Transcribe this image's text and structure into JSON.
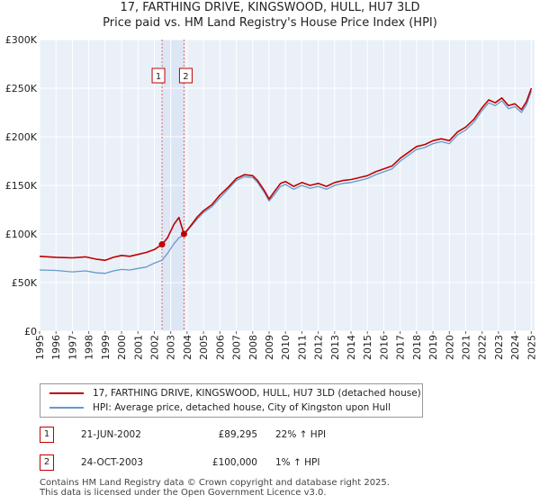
{
  "title_line1": "17, FARTHING DRIVE, KINGSWOOD, HULL, HU7 3LD",
  "title_line2": "Price paid vs. HM Land Registry's House Price Index (HPI)",
  "chart_data": {
    "type": "line",
    "xlabel": "",
    "ylabel": "",
    "xlim": [
      1995,
      2025.2
    ],
    "ylim": [
      0,
      300000
    ],
    "x_ticks": [
      1995,
      1996,
      1997,
      1998,
      1999,
      2000,
      2001,
      2002,
      2003,
      2004,
      2005,
      2006,
      2007,
      2008,
      2009,
      2010,
      2011,
      2012,
      2013,
      2014,
      2015,
      2016,
      2017,
      2018,
      2019,
      2020,
      2021,
      2022,
      2023,
      2024,
      2025
    ],
    "y_ticks": [
      {
        "value": 0,
        "label": "£0"
      },
      {
        "value": 50000,
        "label": "£50K"
      },
      {
        "value": 100000,
        "label": "£100K"
      },
      {
        "value": 150000,
        "label": "£150K"
      },
      {
        "value": 200000,
        "label": "£200K"
      },
      {
        "value": 250000,
        "label": "£250K"
      },
      {
        "value": 300000,
        "label": "£300K"
      }
    ],
    "grid": true,
    "series": [
      {
        "name": "17, FARTHING DRIVE, KINGSWOOD, HULL, HU7 3LD (detached house)",
        "color": "#c00000",
        "x": [
          1995,
          1996,
          1997,
          1997.8,
          1998.5,
          1999,
          1999.5,
          2000,
          2000.5,
          2001,
          2001.5,
          2002,
          2002.47,
          2002.8,
          2003.2,
          2003.5,
          2003.81,
          2004.2,
          2004.6,
          2005,
          2005.5,
          2006,
          2006.5,
          2007,
          2007.5,
          2008,
          2008.3,
          2008.7,
          2009,
          2009.3,
          2009.7,
          2010,
          2010.5,
          2011,
          2011.5,
          2012,
          2012.5,
          2013,
          2013.5,
          2014,
          2014.5,
          2015,
          2015.5,
          2016,
          2016.5,
          2017,
          2017.5,
          2018,
          2018.5,
          2019,
          2019.5,
          2020,
          2020.5,
          2021,
          2021.5,
          2022,
          2022.4,
          2022.8,
          2023.2,
          2023.6,
          2024,
          2024.4,
          2024.7,
          2025
        ],
        "values": [
          77000,
          76000,
          75500,
          76500,
          74000,
          73000,
          76000,
          78000,
          77000,
          79000,
          81000,
          84000,
          89295,
          96000,
          110000,
          117000,
          100000,
          108000,
          117000,
          124000,
          130000,
          140000,
          148000,
          157000,
          161000,
          160000,
          155000,
          145000,
          136000,
          143000,
          152000,
          154000,
          149000,
          153000,
          150000,
          152000,
          149000,
          153000,
          155000,
          156000,
          158000,
          160000,
          164000,
          167000,
          170000,
          178000,
          184000,
          190000,
          192000,
          196000,
          198000,
          196000,
          205000,
          210000,
          218000,
          230000,
          238000,
          235000,
          240000,
          232000,
          234000,
          228000,
          236000,
          250000
        ]
      },
      {
        "name": "HPI: Average price, detached house, City of Kingston upon Hull",
        "color": "#6699cc",
        "x": [
          1995,
          1996,
          1997,
          1997.8,
          1998.5,
          1999,
          1999.5,
          2000,
          2000.5,
          2001,
          2001.5,
          2002,
          2002.47,
          2002.8,
          2003.2,
          2003.5,
          2003.81,
          2004.2,
          2004.6,
          2005,
          2005.5,
          2006,
          2006.5,
          2007,
          2007.5,
          2008,
          2008.3,
          2008.7,
          2009,
          2009.3,
          2009.7,
          2010,
          2010.5,
          2011,
          2011.5,
          2012,
          2012.5,
          2013,
          2013.5,
          2014,
          2014.5,
          2015,
          2015.5,
          2016,
          2016.5,
          2017,
          2017.5,
          2018,
          2018.5,
          2019,
          2019.5,
          2020,
          2020.5,
          2021,
          2021.5,
          2022,
          2022.4,
          2022.8,
          2023.2,
          2023.6,
          2024,
          2024.4,
          2024.7,
          2025
        ],
        "values": [
          63000,
          62500,
          61000,
          62000,
          60000,
          59500,
          62000,
          63500,
          63000,
          64500,
          66000,
          70000,
          73000,
          80000,
          90000,
          96000,
          99000,
          107000,
          115000,
          122000,
          128000,
          137000,
          146000,
          155000,
          159000,
          158000,
          153000,
          143000,
          134000,
          140000,
          149000,
          151000,
          146000,
          150000,
          147000,
          149000,
          146000,
          150000,
          152000,
          153000,
          155000,
          157000,
          161000,
          164000,
          167000,
          175000,
          181000,
          187000,
          189000,
          193000,
          195000,
          193000,
          202000,
          207000,
          215000,
          227000,
          235000,
          232000,
          237000,
          229000,
          231000,
          225000,
          233000,
          247000
        ]
      }
    ],
    "sales": [
      {
        "label": "1",
        "x": 2002.47,
        "value": 89295
      },
      {
        "label": "2",
        "x": 2003.81,
        "value": 100000
      }
    ]
  },
  "legend": {
    "property_label": "17, FARTHING DRIVE, KINGSWOOD, HULL, HU7 3LD (detached house)",
    "hpi_label": "HPI: Average price, detached house, City of Kingston upon Hull"
  },
  "sales_table": [
    {
      "num": "1",
      "date": "21-JUN-2002",
      "price": "£89,295",
      "hpi": "22% ↑ HPI"
    },
    {
      "num": "2",
      "date": "24-OCT-2003",
      "price": "£100,000",
      "hpi": "1% ↑ HPI"
    }
  ],
  "footer_line1": "Contains HM Land Registry data © Crown copyright and database right 2025.",
  "footer_line2": "This data is licensed under the Open Government Licence v3.0.",
  "colors": {
    "property": "#c00000",
    "hpi": "#6699cc",
    "shade": "#dde6f4",
    "plot_bg": "#eaf0f8"
  }
}
